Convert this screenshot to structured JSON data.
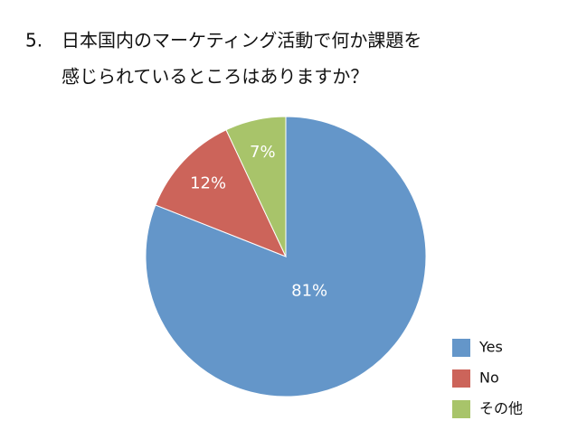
{
  "chart_data": {
    "type": "pie",
    "number": "5.",
    "title": [
      "日本国内のマーケティング活動で何か課題を",
      "感じられているところはありますか？"
    ],
    "categories": [
      "Yes",
      "No",
      "その他"
    ],
    "values": [
      81,
      12,
      7
    ],
    "value_labels": [
      "81%",
      "12%",
      "7%"
    ],
    "colors": [
      "#6496c9",
      "#cc645a",
      "#a8c46a"
    ],
    "legend": "lower right"
  }
}
